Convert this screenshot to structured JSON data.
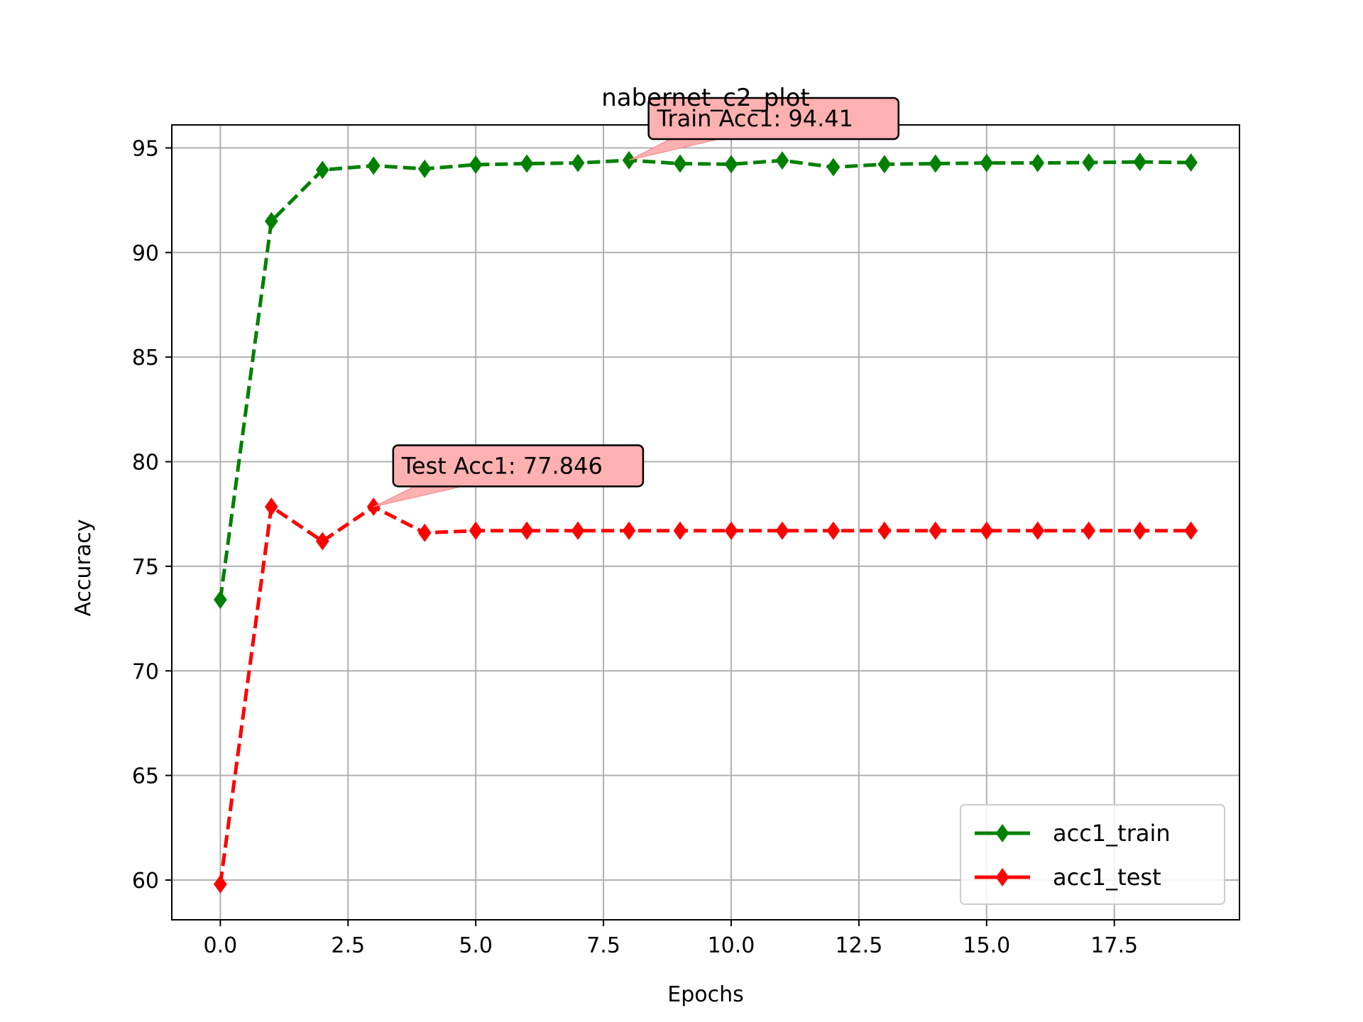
{
  "chart_data": {
    "type": "line",
    "title": "nabernet_c2_plot",
    "xlabel": "Epochs",
    "ylabel": "Accuracy",
    "xlim": [
      -0.95,
      19.95
    ],
    "ylim": [
      58.1,
      96.1
    ],
    "xticks": [
      0.0,
      2.5,
      5.0,
      7.5,
      10.0,
      12.5,
      15.0,
      17.5
    ],
    "xtick_labels": [
      "0.0",
      "2.5",
      "5.0",
      "7.5",
      "10.0",
      "12.5",
      "15.0",
      "17.5"
    ],
    "yticks": [
      60,
      65,
      70,
      75,
      80,
      85,
      90,
      95
    ],
    "ytick_labels": [
      "60",
      "65",
      "70",
      "75",
      "80",
      "85",
      "90",
      "95"
    ],
    "grid": true,
    "legend_position": "lower-right",
    "x": [
      0,
      1,
      2,
      3,
      4,
      5,
      6,
      7,
      8,
      9,
      10,
      11,
      12,
      13,
      14,
      15,
      16,
      17,
      18,
      19
    ],
    "series": [
      {
        "name": "acc1_train",
        "color": "#008000",
        "line_style": "dashed",
        "marker": "diamond",
        "values": [
          73.4,
          91.5,
          93.95,
          94.15,
          94.0,
          94.2,
          94.25,
          94.28,
          94.41,
          94.25,
          94.22,
          94.4,
          94.08,
          94.22,
          94.25,
          94.28,
          94.28,
          94.3,
          94.33,
          94.3
        ]
      },
      {
        "name": "acc1_test",
        "color": "#ff0000",
        "line_style": "dashed",
        "marker": "diamond",
        "values": [
          59.8,
          77.846,
          76.2,
          77.846,
          76.6,
          76.7,
          76.7,
          76.7,
          76.7,
          76.7,
          76.7,
          76.7,
          76.7,
          76.7,
          76.7,
          76.7,
          76.7,
          76.7,
          76.7,
          76.7
        ]
      }
    ],
    "annotations": [
      {
        "text": "Train Acc1: 94.41",
        "series": 0,
        "point_x": 8,
        "point_y": 94.41,
        "label_x": 8.55,
        "label_y": 96.2,
        "color": "#ffb0b0"
      },
      {
        "text": "Test Acc1: 77.846",
        "series": 1,
        "point_x": 3,
        "point_y": 77.846,
        "label_x": 3.55,
        "label_y": 79.6,
        "color": "#ffb0b0"
      }
    ]
  }
}
